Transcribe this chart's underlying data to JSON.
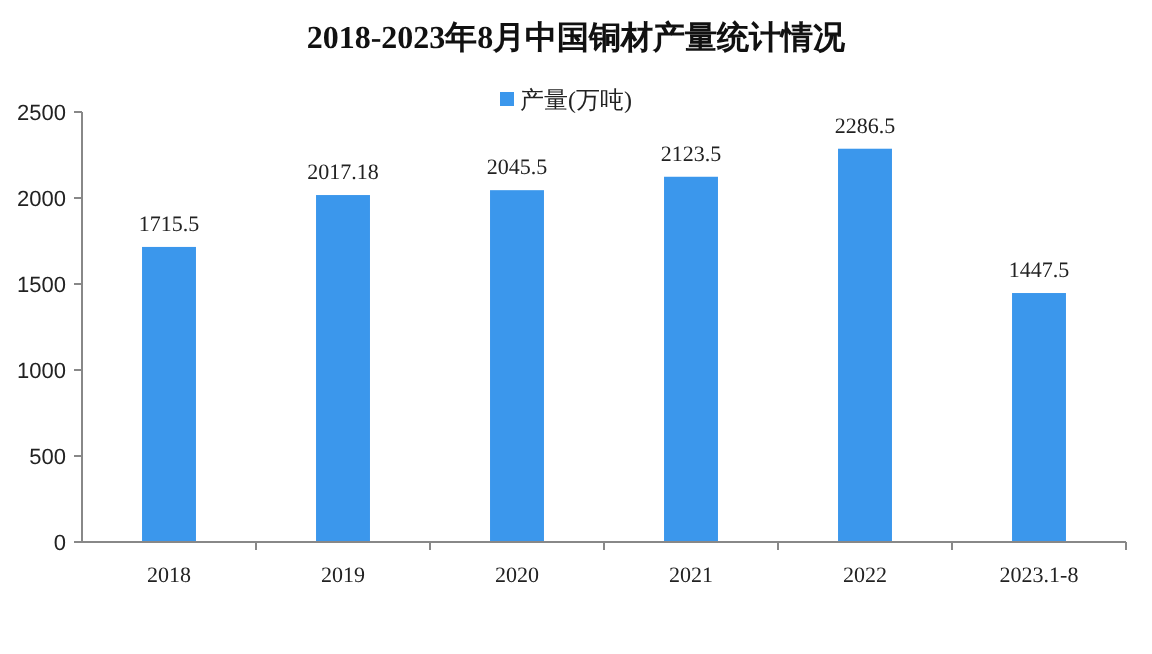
{
  "chart_data": {
    "type": "bar",
    "title": "2018-2023年8月中国铜材产量统计情况",
    "categories": [
      "2018",
      "2019",
      "2020",
      "2021",
      "2022",
      "2023.1-8"
    ],
    "series": [
      {
        "name": "产量(万吨)",
        "color": "#3b97ec",
        "values": [
          1715.5,
          2017.18,
          2045.5,
          2123.5,
          2286.5,
          1447.5
        ]
      }
    ],
    "ylim": [
      0,
      2500
    ],
    "yticks": [
      0,
      500,
      1000,
      1500,
      2000,
      2500
    ],
    "grid": false,
    "legend": "top",
    "data_labels": true
  }
}
